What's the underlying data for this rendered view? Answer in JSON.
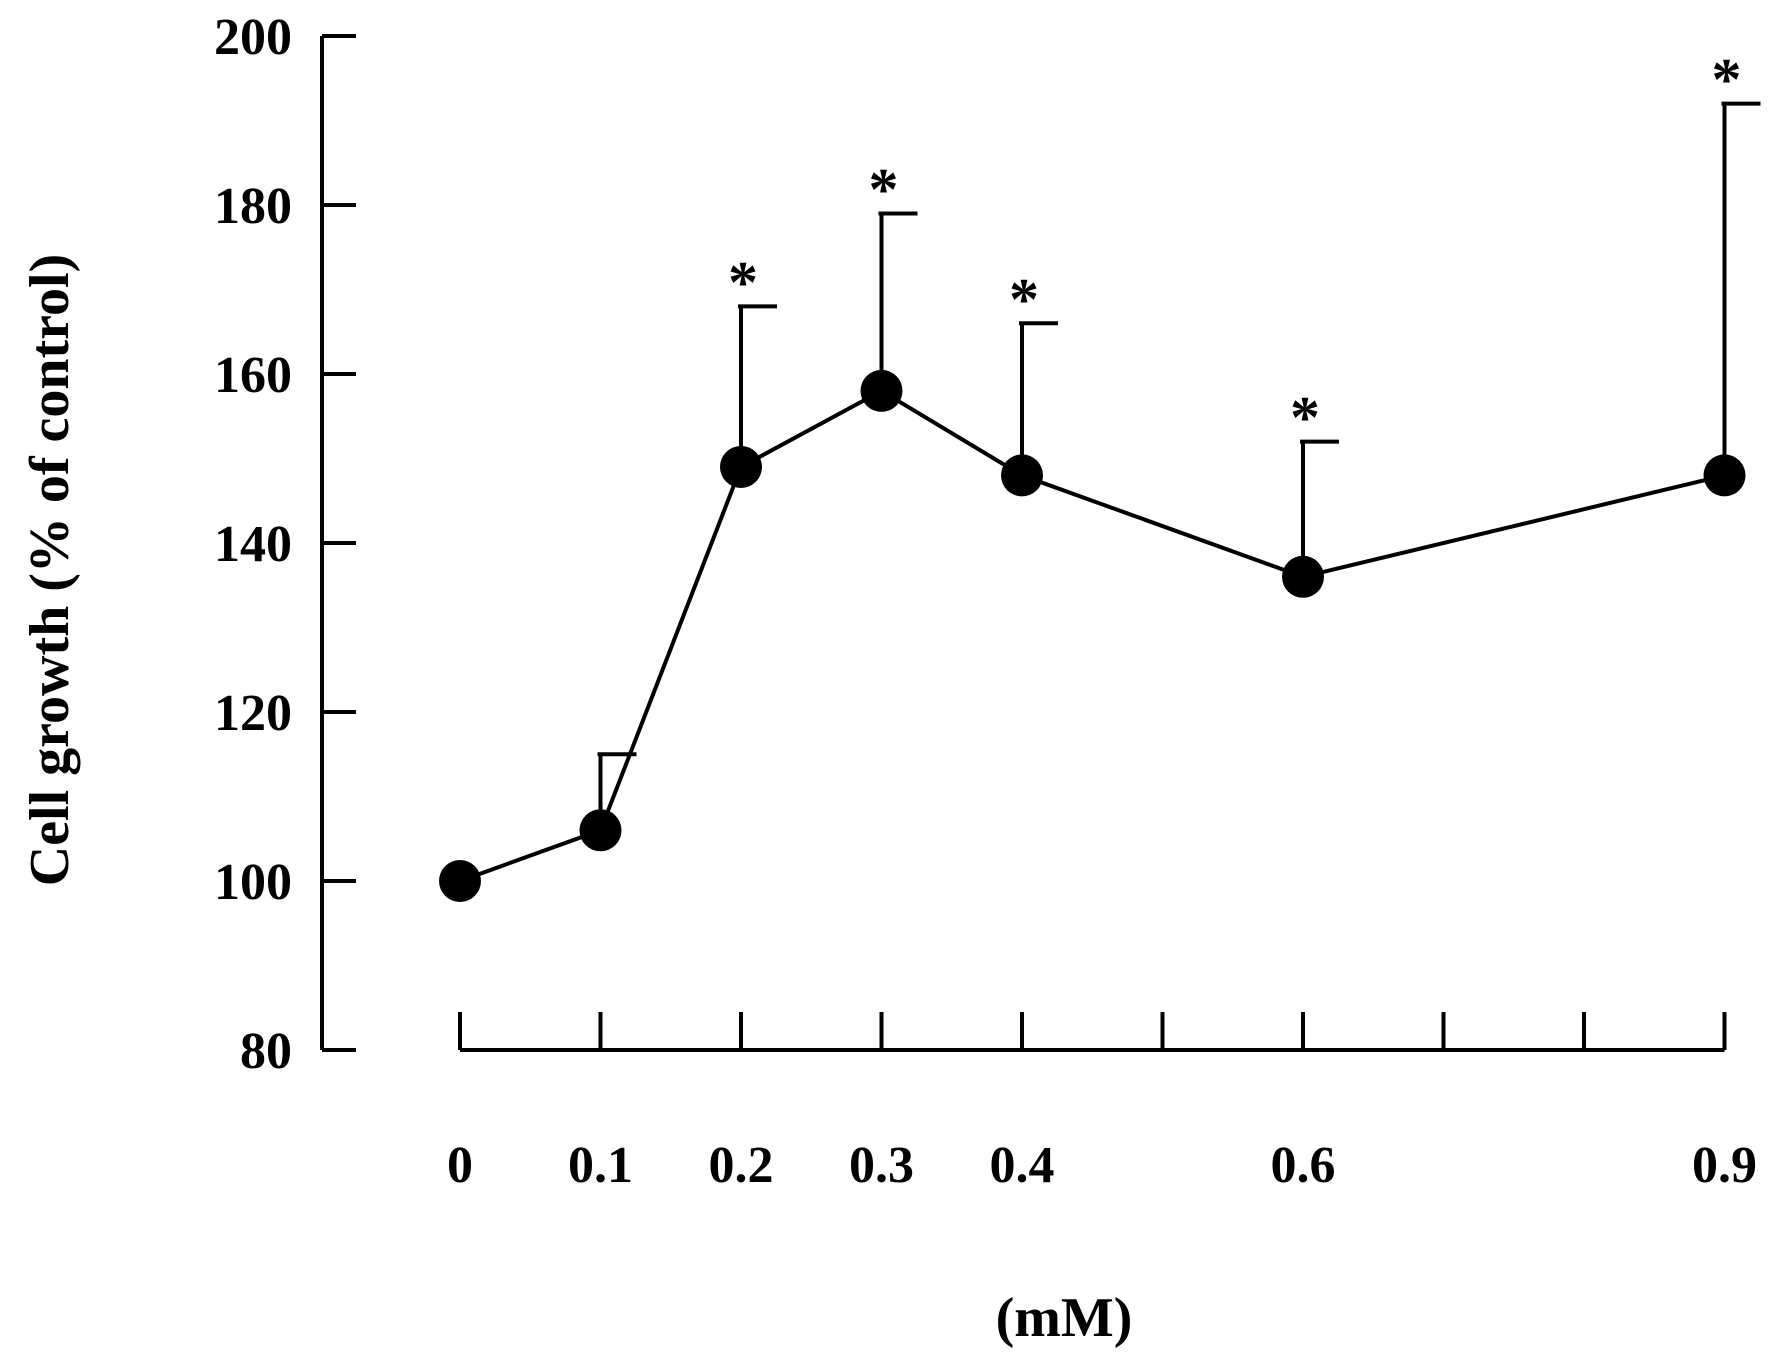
{
  "chart_data": {
    "type": "line",
    "title": "",
    "xlabel": "(mM)",
    "ylabel": "Cell growth (% of control)",
    "ylim": [
      80,
      200
    ],
    "yticks": [
      80,
      100,
      120,
      140,
      160,
      180,
      200
    ],
    "ytick_labels": [
      "80",
      "100",
      "120",
      "140",
      "160",
      "180",
      "200"
    ],
    "x_positions": [
      0,
      1,
      2,
      3,
      4,
      5,
      6,
      7,
      8,
      9
    ],
    "x_labeled": [
      {
        "pos": 0,
        "label": "0"
      },
      {
        "pos": 1,
        "label": "0.1"
      },
      {
        "pos": 2,
        "label": "0.2"
      },
      {
        "pos": 3,
        "label": "0.3"
      },
      {
        "pos": 4,
        "label": "0.4"
      },
      {
        "pos": 6,
        "label": "0.6"
      },
      {
        "pos": 9,
        "label": "0.9"
      }
    ],
    "grid": false,
    "series": [
      {
        "name": "Cell growth",
        "x": [
          0,
          0.1,
          0.2,
          0.3,
          0.4,
          0.6,
          0.9
        ],
        "x_pos": [
          0,
          1,
          2,
          3,
          4,
          6,
          9
        ],
        "values": [
          100,
          106,
          149,
          158,
          148,
          136,
          148
        ],
        "error_upper": [
          0,
          9,
          19,
          21,
          18,
          16,
          44
        ],
        "significant": [
          false,
          false,
          true,
          true,
          true,
          true,
          true
        ],
        "marker": "filled-circle",
        "color": "#000000"
      }
    ],
    "significance_symbol": "*"
  }
}
